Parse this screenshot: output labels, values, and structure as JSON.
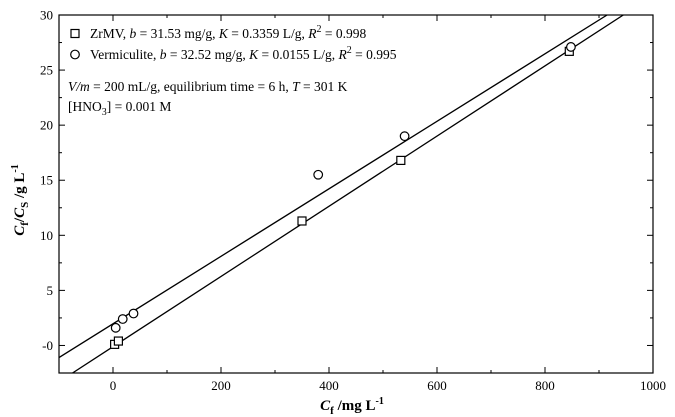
{
  "chart_data": {
    "type": "scatter",
    "x_ticks": [
      "0",
      "200",
      "400",
      "600",
      "800",
      "1000"
    ],
    "y_ticks": [
      "-0",
      "5",
      "10",
      "15",
      "20",
      "25",
      "30"
    ],
    "xlim": [
      -100,
      1000
    ],
    "ylim": [
      -2.5,
      30
    ],
    "xlabel_main": "C",
    "xlabel_sub": "f",
    "xlabel_unit": " /mg L",
    "xlabel_sup": "-1",
    "ylabel_n": "C",
    "ylabel_n_sub": "f",
    "ylabel_d": "C",
    "ylabel_d_sub": "S",
    "ylabel_unit": " /g L",
    "ylabel_sup": "-1",
    "grid": false,
    "legend_position": "top-left",
    "series": [
      {
        "name": "ZrMV",
        "marker": "square",
        "legend_pre": "ZrMV, ",
        "legend_parts": [
          [
            "b",
            true
          ],
          [
            " = 31.53 mg/g, ",
            false
          ],
          [
            "K",
            true
          ],
          [
            " = 0.3359 L/g, ",
            false
          ],
          [
            "R",
            true
          ]
        ],
        "legend_sup": "2",
        "legend_post": " = 0.998",
        "points": [
          [
            3,
            0.1
          ],
          [
            10,
            0.4
          ],
          [
            350,
            11.3
          ],
          [
            533,
            16.8
          ],
          [
            845,
            26.7
          ]
        ],
        "fit": [
          [
            -75,
            -2.5
          ],
          [
            945,
            30
          ]
        ]
      },
      {
        "name": "Vermiculite",
        "marker": "circle",
        "legend_pre": "Vermiculite, ",
        "legend_parts": [
          [
            "b",
            true
          ],
          [
            " = 32.52 mg/g, ",
            false
          ],
          [
            "K",
            true
          ],
          [
            " = 0.0155 L/g, ",
            false
          ],
          [
            "R",
            true
          ]
        ],
        "legend_sup": "2",
        "legend_post": " = 0.995",
        "points": [
          [
            5,
            1.6
          ],
          [
            18,
            2.4
          ],
          [
            38,
            2.9
          ],
          [
            380,
            15.5
          ],
          [
            540,
            19.0
          ],
          [
            848,
            27.1
          ]
        ],
        "fit": [
          [
            -100,
            -1.1
          ],
          [
            915,
            30
          ]
        ]
      }
    ],
    "annotations": {
      "line1_parts": [
        [
          "V/m",
          true
        ],
        [
          " = 200 mL/g, equilibrium time = 6 h, ",
          false
        ],
        [
          "T",
          true
        ],
        [
          " = 301 K",
          false
        ]
      ],
      "line2_pre": "[HNO",
      "line2_sub": "3",
      "line2_post": "] = 0.001 M"
    }
  }
}
